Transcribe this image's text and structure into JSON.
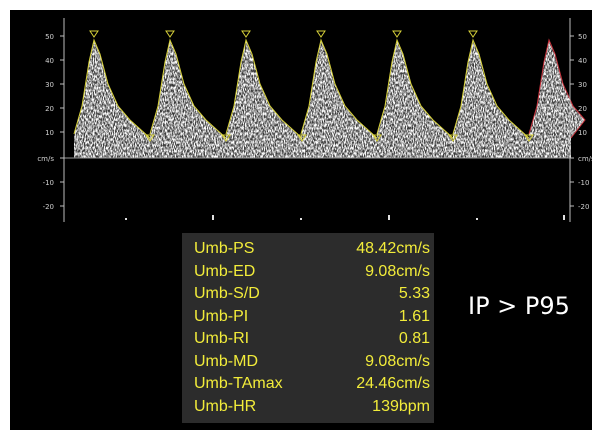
{
  "scale": {
    "ticks": [
      "50",
      "40",
      "30",
      "20",
      "10",
      "cm/s",
      "-10",
      "-20"
    ]
  },
  "measurements": [
    {
      "label": "Umb-PS",
      "value": "48.42cm/s"
    },
    {
      "label": "Umb-ED",
      "value": "9.08cm/s"
    },
    {
      "label": "Umb-S/D",
      "value": "5.33"
    },
    {
      "label": "Umb-PI",
      "value": "1.61"
    },
    {
      "label": "Umb-RI",
      "value": "0.81"
    },
    {
      "label": "Umb-MD",
      "value": "9.08cm/s"
    },
    {
      "label": "Umb-TAmax",
      "value": "24.46cm/s"
    },
    {
      "label": "Umb-HR",
      "value": "139bpm"
    }
  ],
  "annotation": "IP > P95",
  "colors": {
    "background": "#000000",
    "panel": "#2c2c2c",
    "measurement_text": "#f2ec3a",
    "envelope": "#d8d23a",
    "last_cycle_envelope": "#c8323c"
  }
}
